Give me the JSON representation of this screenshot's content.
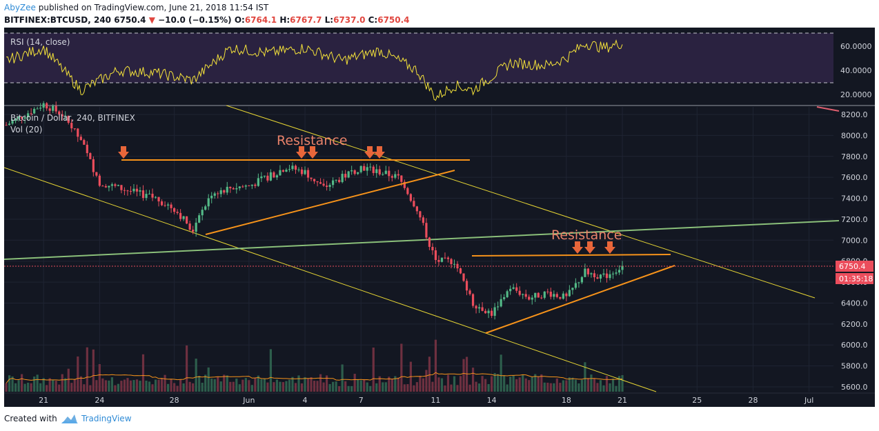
{
  "header": {
    "author": "AbyZee",
    "published_text": " published on TradingView.com, June 21, 2018 11:54 IST",
    "symbol": "BITFINEX:BTCUSD, 240",
    "last": "6750.4",
    "change": "−10.0 (−0.15%)",
    "open_label": "O:",
    "open": "6764.1",
    "high_label": "H:",
    "high": "6767.7",
    "low_label": "L:",
    "low": "6737.0",
    "close_label": "C:",
    "close": "6750.4"
  },
  "rsi_panel": {
    "label": "RSI (14, close)",
    "ticks": [
      "60.0000",
      "40.0000",
      "20.0000"
    ],
    "upper_band": 70,
    "lower_band": 30,
    "series_color": "#f5e33a"
  },
  "price_panel": {
    "title": "Bitcoin / Dollar, 240, BITFINEX",
    "vol_label": "Vol (20)",
    "y_ticks": [
      "8200.0",
      "8000.0",
      "7800.0",
      "7600.0",
      "7400.0",
      "7200.0",
      "7000.0",
      "6800.0",
      "6600.0",
      "6400.0",
      "6200.0",
      "6000.0",
      "5800.0",
      "5600.0"
    ],
    "last_price_label": "6750.4",
    "countdown_label": "01:35:18",
    "annotation_1": "Resistance",
    "annotation_2": "Resistance",
    "up_color": "#53b987",
    "down_color": "#eb4d5c",
    "resistance_color": "#f7931a"
  },
  "x_axis": {
    "labels": [
      "21",
      "24",
      "28",
      "Jun",
      "4",
      "7",
      "11",
      "14",
      "18",
      "21",
      "25",
      "28",
      "Jul"
    ]
  },
  "chart_data": {
    "type": "candlestick",
    "symbol": "BITFINEX:BTCUSD",
    "interval": "240",
    "ylim": [
      5550,
      8300
    ],
    "ohlc_last": {
      "open": 6764.1,
      "high": 6767.7,
      "low": 6737.0,
      "close": 6750.4
    },
    "close_path": [
      {
        "x": "2018-05-19",
        "y": 8100
      },
      {
        "x": "2018-05-20",
        "y": 8200
      },
      {
        "x": "2018-05-21",
        "y": 8300
      },
      {
        "x": "2018-05-22",
        "y": 8200
      },
      {
        "x": "2018-05-23",
        "y": 7950
      },
      {
        "x": "2018-05-24",
        "y": 7550
      },
      {
        "x": "2018-05-25",
        "y": 7500
      },
      {
        "x": "2018-05-26",
        "y": 7450
      },
      {
        "x": "2018-05-27",
        "y": 7400
      },
      {
        "x": "2018-05-28",
        "y": 7300
      },
      {
        "x": "2018-05-29",
        "y": 7100
      },
      {
        "x": "2018-05-30",
        "y": 7450
      },
      {
        "x": "2018-05-31",
        "y": 7500
      },
      {
        "x": "2018-06-01",
        "y": 7520
      },
      {
        "x": "2018-06-02",
        "y": 7600
      },
      {
        "x": "2018-06-03",
        "y": 7700
      },
      {
        "x": "2018-06-04",
        "y": 7650
      },
      {
        "x": "2018-06-05",
        "y": 7500
      },
      {
        "x": "2018-06-06",
        "y": 7600
      },
      {
        "x": "2018-06-07",
        "y": 7700
      },
      {
        "x": "2018-06-08",
        "y": 7650
      },
      {
        "x": "2018-06-09",
        "y": 7600
      },
      {
        "x": "2018-06-10",
        "y": 7300
      },
      {
        "x": "2018-06-11",
        "y": 6800
      },
      {
        "x": "2018-06-12",
        "y": 6800
      },
      {
        "x": "2018-06-13",
        "y": 6400
      },
      {
        "x": "2018-06-14",
        "y": 6300
      },
      {
        "x": "2018-06-15",
        "y": 6550
      },
      {
        "x": "2018-06-16",
        "y": 6450
      },
      {
        "x": "2018-06-17",
        "y": 6500
      },
      {
        "x": "2018-06-18",
        "y": 6450
      },
      {
        "x": "2018-06-19",
        "y": 6700
      },
      {
        "x": "2018-06-20",
        "y": 6650
      },
      {
        "x": "2018-06-21",
        "y": 6750
      }
    ],
    "rsi_path": [
      {
        "x": "2018-05-19",
        "y": 48
      },
      {
        "x": "2018-05-21",
        "y": 58
      },
      {
        "x": "2018-05-23",
        "y": 24
      },
      {
        "x": "2018-05-25",
        "y": 40
      },
      {
        "x": "2018-05-27",
        "y": 38
      },
      {
        "x": "2018-05-29",
        "y": 32
      },
      {
        "x": "2018-05-31",
        "y": 58
      },
      {
        "x": "2018-06-02",
        "y": 54
      },
      {
        "x": "2018-06-04",
        "y": 58
      },
      {
        "x": "2018-06-06",
        "y": 48
      },
      {
        "x": "2018-06-08",
        "y": 56
      },
      {
        "x": "2018-06-10",
        "y": 40
      },
      {
        "x": "2018-06-11",
        "y": 18
      },
      {
        "x": "2018-06-12",
        "y": 28
      },
      {
        "x": "2018-06-13",
        "y": 24
      },
      {
        "x": "2018-06-15",
        "y": 46
      },
      {
        "x": "2018-06-17",
        "y": 44
      },
      {
        "x": "2018-06-18",
        "y": 50
      },
      {
        "x": "2018-06-19",
        "y": 62
      },
      {
        "x": "2018-06-20",
        "y": 58
      },
      {
        "x": "2018-06-21",
        "y": 62
      }
    ],
    "resistance_levels": [
      7760,
      6860
    ],
    "annotations": [
      "Resistance",
      "Resistance"
    ]
  }
}
